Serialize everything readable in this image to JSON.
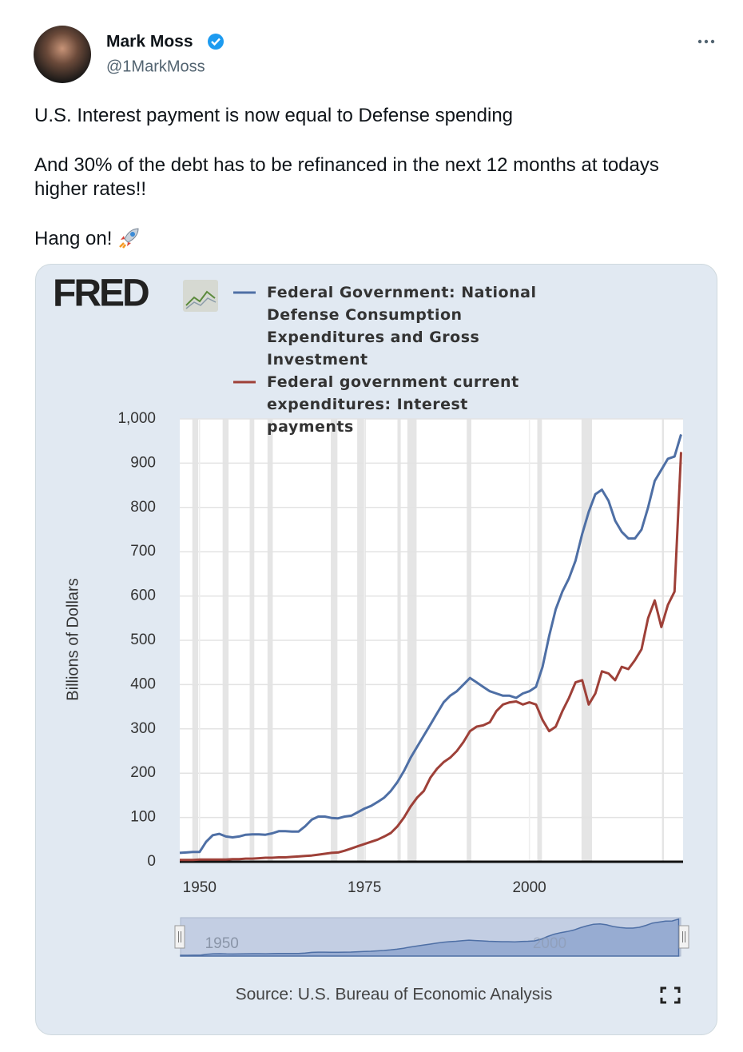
{
  "tweet": {
    "author": "Mark Moss",
    "handle": "@1MarkMoss",
    "paragraphs": [
      "U.S. Interest payment is now equal to Defense spending",
      "And 30% of the debt has to be refinanced in the next 12 months at todays higher rates!!",
      "Hang on!"
    ]
  },
  "chart_data": {
    "type": "line",
    "logo": "FRED",
    "y_label": "Billions of Dollars",
    "source": "Source: U.S. Bureau of Economic Analysis",
    "x": [
      1947,
      1948,
      1949,
      1950,
      1951,
      1952,
      1953,
      1954,
      1955,
      1956,
      1957,
      1958,
      1959,
      1960,
      1961,
      1962,
      1963,
      1964,
      1965,
      1966,
      1967,
      1968,
      1969,
      1970,
      1971,
      1972,
      1973,
      1974,
      1975,
      1976,
      1977,
      1978,
      1979,
      1980,
      1981,
      1982,
      1983,
      1984,
      1985,
      1986,
      1987,
      1988,
      1989,
      1990,
      1991,
      1992,
      1993,
      1994,
      1995,
      1996,
      1997,
      1998,
      1999,
      2000,
      2001,
      2002,
      2003,
      2004,
      2005,
      2006,
      2007,
      2008,
      2009,
      2010,
      2011,
      2012,
      2013,
      2014,
      2015,
      2016,
      2017,
      2018,
      2019,
      2020,
      2021,
      2022,
      2023
    ],
    "series": [
      {
        "name": "Federal Government: National Defense Consumption Expenditures and Gross Investment",
        "color": "#4e6fa5",
        "values": [
          20,
          21,
          22,
          22,
          45,
          60,
          63,
          57,
          55,
          57,
          61,
          62,
          62,
          61,
          64,
          69,
          69,
          68,
          68,
          80,
          95,
          102,
          102,
          99,
          98,
          102,
          104,
          112,
          120,
          126,
          135,
          145,
          160,
          180,
          205,
          235,
          260,
          285,
          310,
          335,
          360,
          375,
          385,
          400,
          415,
          405,
          395,
          385,
          380,
          375,
          375,
          370,
          380,
          385,
          395,
          440,
          510,
          570,
          610,
          640,
          680,
          740,
          790,
          830,
          840,
          815,
          770,
          745,
          730,
          730,
          750,
          800,
          860,
          885,
          910,
          915,
          965
        ]
      },
      {
        "name": "Federal government current expenditures: Interest payments",
        "color": "#9e4038",
        "values": [
          4,
          4,
          4,
          5,
          5,
          5,
          5,
          5,
          6,
          6,
          7,
          7,
          8,
          9,
          9,
          10,
          10,
          11,
          12,
          13,
          14,
          16,
          18,
          20,
          21,
          25,
          30,
          35,
          40,
          45,
          50,
          57,
          65,
          80,
          100,
          125,
          145,
          160,
          190,
          210,
          225,
          235,
          250,
          270,
          295,
          305,
          308,
          315,
          340,
          355,
          360,
          362,
          355,
          360,
          355,
          320,
          295,
          305,
          340,
          370,
          405,
          410,
          355,
          380,
          430,
          425,
          410,
          440,
          435,
          455,
          480,
          550,
          590,
          530,
          580,
          610,
          925
        ]
      }
    ],
    "shaded_periods": [
      [
        1948.9,
        1949.8
      ],
      [
        1953.5,
        1954.4
      ],
      [
        1957.6,
        1958.3
      ],
      [
        1960.3,
        1961.1
      ],
      [
        1969.9,
        1970.9
      ],
      [
        1973.9,
        1975.2
      ],
      [
        1980.0,
        1980.5
      ],
      [
        1981.5,
        1982.9
      ],
      [
        1990.5,
        1991.2
      ],
      [
        2001.2,
        2001.9
      ],
      [
        2007.9,
        2009.5
      ],
      [
        2020.1,
        2020.4
      ]
    ],
    "xlim": [
      1947,
      2023.3
    ],
    "xticks": [
      1950,
      1975,
      2000
    ],
    "ylim": [
      0,
      1000
    ],
    "yticks": [
      0,
      100,
      200,
      300,
      400,
      500,
      600,
      700,
      800,
      900,
      {
        "value": 1000,
        "label": "1,000"
      }
    ],
    "grid": true,
    "navigator": {
      "xticks": [
        1950,
        2000
      ]
    }
  }
}
